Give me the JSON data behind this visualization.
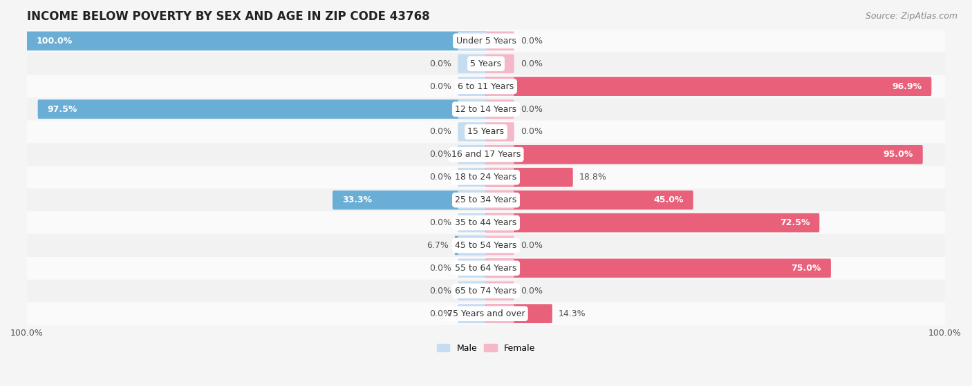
{
  "title": "INCOME BELOW POVERTY BY SEX AND AGE IN ZIP CODE 43768",
  "source": "Source: ZipAtlas.com",
  "categories": [
    "Under 5 Years",
    "5 Years",
    "6 to 11 Years",
    "12 to 14 Years",
    "15 Years",
    "16 and 17 Years",
    "18 to 24 Years",
    "25 to 34 Years",
    "35 to 44 Years",
    "45 to 54 Years",
    "55 to 64 Years",
    "65 to 74 Years",
    "75 Years and over"
  ],
  "male": [
    100.0,
    0.0,
    0.0,
    97.5,
    0.0,
    0.0,
    0.0,
    33.3,
    0.0,
    6.7,
    0.0,
    0.0,
    0.0
  ],
  "female": [
    0.0,
    0.0,
    96.9,
    0.0,
    0.0,
    95.0,
    18.8,
    45.0,
    72.5,
    0.0,
    75.0,
    0.0,
    14.3
  ],
  "male_color_full": "#6aaed6",
  "male_color_stub": "#c6dcf0",
  "female_color_full": "#e8607a",
  "female_color_stub": "#f4b8c8",
  "male_label_color": "#555555",
  "female_label_color": "#555555",
  "male_label_white": "white",
  "female_label_white": "white",
  "bg_odd": "#f2f2f2",
  "bg_even": "#fafafa",
  "xlim": 100,
  "stub_size": 6,
  "legend_male": "Male",
  "legend_female": "Female",
  "title_fontsize": 12,
  "source_fontsize": 9,
  "label_fontsize": 9,
  "cat_fontsize": 9,
  "tick_fontsize": 9
}
